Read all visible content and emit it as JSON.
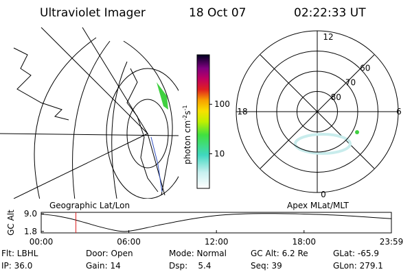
{
  "header": {
    "title": "Ultraviolet Imager",
    "date": "18 Oct 07",
    "time": "02:22:33 UT"
  },
  "colorbar": {
    "label": "photon cm",
    "exp1": "-2",
    "unit2": "s",
    "exp2": "-1",
    "log": true,
    "lim": [
      2,
      1000
    ],
    "ticks": [
      {
        "value": 10,
        "label": "10"
      },
      {
        "value": 100,
        "label": "100"
      }
    ]
  },
  "polar_plot": {
    "mlt_labels": [
      "12",
      "18",
      "6",
      "0"
    ],
    "lat_rings": [
      {
        "value": 60,
        "label": "60"
      },
      {
        "value": 70,
        "label": "70"
      },
      {
        "value": 80,
        "label": "80"
      }
    ],
    "lat_lim": [
      50,
      90
    ]
  },
  "panel_labels": {
    "left": "Geographic Lat/Lon",
    "right": "Apex MLat/MLT"
  },
  "altitude_plot": {
    "ylabel": "GC Alt",
    "ylim": [
      1.2,
      9.6
    ],
    "yticks": [
      {
        "value": 9.0,
        "label": "9.0"
      },
      {
        "value": 1.8,
        "label": "1.8"
      }
    ],
    "xlim": [
      0,
      23.983
    ],
    "xticks": [
      {
        "value": 0,
        "label": "00:00"
      },
      {
        "value": 6,
        "label": "06:00"
      },
      {
        "value": 12,
        "label": "12:00"
      },
      {
        "value": 18,
        "label": "18:00"
      },
      {
        "value": 23.983,
        "label": "23:59"
      }
    ],
    "x": [
      0,
      1,
      2,
      3,
      4,
      5,
      5.7,
      6.5,
      8,
      10,
      12,
      14,
      16,
      18,
      20,
      22,
      23.983
    ],
    "values": [
      8.9,
      8.2,
      7.0,
      5.4,
      3.7,
      2.3,
      1.8,
      2.4,
      4.3,
      6.6,
      8.3,
      9.0,
      9.1,
      8.9,
      8.5,
      7.8,
      7.0
    ],
    "marker_hour": 2.376
  },
  "status": {
    "row1": [
      "Flt: LBHL",
      "Door: Open",
      "Mode: Normal",
      "GC Alt: 6.2 Re",
      "GLat: -65.9"
    ],
    "row2": [
      "IP: 36.0",
      "Gain: 14",
      "Dsp:    5.4",
      "Seq: 39",
      "GLon: 279.1"
    ]
  }
}
